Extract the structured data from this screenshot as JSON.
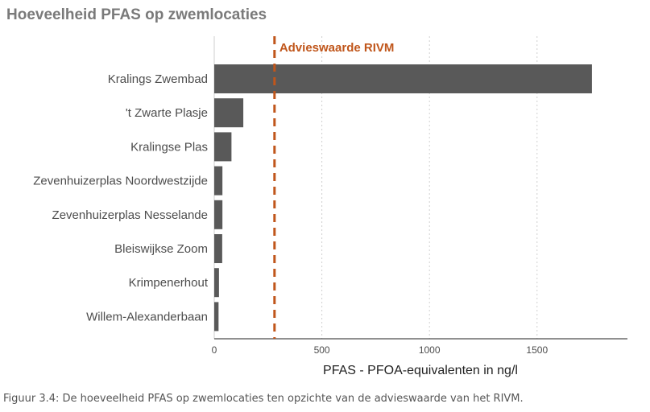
{
  "title": "Hoeveelheid PFAS op zwemlocaties",
  "caption": "Figuur 3.4: De hoeveelheid PFAS op zwemlocaties ten opzichte van de advieswaarde van het RIVM.",
  "colors": {
    "bar": "#595959",
    "reference": "#c0561b",
    "grid": "#cfcfcf",
    "axis": "#4d4d4d"
  },
  "chart_data": {
    "type": "bar",
    "orientation": "horizontal",
    "categories": [
      "Kralings Zwembad",
      "'t Zwarte Plasje",
      "Kralingse Plas",
      "Zevenhuizerplas Noordwestzijde",
      "Zevenhuizerplas Nesselande",
      "Bleiswijkse Zoom",
      "Krimpenerhout",
      "Willem-Alexanderbaan"
    ],
    "values": [
      1755,
      135,
      80,
      38,
      38,
      37,
      22,
      20
    ],
    "xlabel": "PFAS - PFOA-equivalenten in ng/l",
    "xlim": [
      0,
      1920
    ],
    "xticks": [
      0,
      500,
      1000,
      1500
    ],
    "grid": "vertical dotted",
    "reference_line": {
      "value": 280,
      "label": "Advieswaarde RIVM",
      "style": "dashed"
    }
  }
}
